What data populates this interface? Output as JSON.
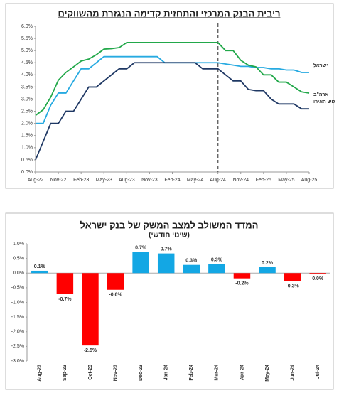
{
  "chart_data": [
    {
      "type": "line",
      "title": "ריבית הבנק המרכזי והתחזית קדימה הנגזרת מהשווקים",
      "categories": [
        "Aug-22",
        null,
        null,
        "Nov-22",
        null,
        null,
        "Feb-23",
        null,
        null,
        "May-23",
        null,
        null,
        "Aug-23",
        null,
        null,
        "Nov-23",
        null,
        null,
        "Feb-24",
        null,
        null,
        "May-24",
        null,
        null,
        "Aug-24",
        null,
        null,
        "Nov-24",
        null,
        null,
        "Feb-25",
        null,
        null,
        "May-25",
        null,
        null,
        "Aug-25"
      ],
      "series": [
        {
          "name": "ישראל",
          "color": "#27aae1",
          "values": [
            2.0,
            2.0,
            2.75,
            3.25,
            3.25,
            3.75,
            4.25,
            4.25,
            4.5,
            4.75,
            4.75,
            4.75,
            4.75,
            4.75,
            4.75,
            4.75,
            4.75,
            4.5,
            4.5,
            4.5,
            4.5,
            4.5,
            4.5,
            4.5,
            4.5,
            4.45,
            4.4,
            4.35,
            4.35,
            4.3,
            4.3,
            4.25,
            4.25,
            4.2,
            4.2,
            4.1,
            4.1
          ]
        },
        {
          "name": "ארה\"ב",
          "color": "#22a84a",
          "values": [
            2.33,
            2.56,
            3.08,
            3.78,
            4.1,
            4.33,
            4.57,
            4.65,
            4.83,
            5.06,
            5.08,
            5.12,
            5.33,
            5.33,
            5.33,
            5.33,
            5.33,
            5.33,
            5.33,
            5.33,
            5.33,
            5.33,
            5.33,
            5.33,
            5.33,
            5.0,
            5.0,
            4.6,
            4.4,
            4.33,
            4.0,
            4.0,
            3.7,
            3.7,
            3.5,
            3.3,
            3.25
          ]
        },
        {
          "name": "גוש האירו",
          "color": "#1f3864",
          "values": [
            0.5,
            1.25,
            2.0,
            2.0,
            2.5,
            2.5,
            3.0,
            3.5,
            3.5,
            3.75,
            4.0,
            4.25,
            4.25,
            4.5,
            4.5,
            4.5,
            4.5,
            4.5,
            4.5,
            4.5,
            4.5,
            4.5,
            4.25,
            4.25,
            4.25,
            4.0,
            3.75,
            3.75,
            3.4,
            3.35,
            3.35,
            3.0,
            2.8,
            2.8,
            2.8,
            2.6,
            2.6
          ]
        }
      ],
      "forecast_start": "Aug-24",
      "ylim": [
        0,
        6
      ],
      "yticks": [
        {
          "value": 0,
          "label": "0.0%"
        },
        {
          "value": 0.5,
          "label": "0.5%"
        },
        {
          "value": 1,
          "label": "1.0%"
        },
        {
          "value": 1.5,
          "label": "1.5%"
        },
        {
          "value": 2,
          "label": "2.0%"
        },
        {
          "value": 2.5,
          "label": "2.5%"
        },
        {
          "value": 3,
          "label": "3.0%"
        },
        {
          "value": 3.5,
          "label": "3.5%"
        },
        {
          "value": 4,
          "label": "4.0%"
        },
        {
          "value": 4.5,
          "label": "4.5%"
        },
        {
          "value": 5,
          "label": "5.0%"
        },
        {
          "value": 5.5,
          "label": "5.5%"
        },
        {
          "value": 6,
          "label": "6.0%"
        }
      ],
      "grid": false
    },
    {
      "type": "bar",
      "title": "המדד המשולב למצב המשק של בנק ישראל",
      "subtitle": "(שינוי חודשי)",
      "categories": [
        "Aug-23",
        "Sep-23",
        "Oct-23",
        "Nov-23",
        "Dec-23",
        "Jan-24",
        "Feb-24",
        "Mar-24",
        "Apr-24",
        "May-24",
        "Jun-24",
        "Jul-24"
      ],
      "values": [
        0.08,
        -0.72,
        -2.47,
        -0.57,
        0.72,
        0.67,
        0.28,
        0.3,
        -0.18,
        0.2,
        -0.28,
        -0.02
      ],
      "value_labels": [
        "0.1%",
        "-0.7%",
        "-2.5%",
        "-0.6%",
        "0.7%",
        "0.7%",
        "0.3%",
        "0.3%",
        "-0.2%",
        "0.2%",
        "-0.3%",
        "0.0%"
      ],
      "positive_color": "#13a7e4",
      "negative_color": "#ff0000",
      "ylim": [
        -3,
        1
      ],
      "yticks": [
        {
          "value": -3,
          "label": "-3.0%"
        },
        {
          "value": -2.5,
          "label": "-2.5%"
        },
        {
          "value": -2,
          "label": "-2.0%"
        },
        {
          "value": -1.5,
          "label": "-1.5%"
        },
        {
          "value": -1,
          "label": "-1.0%"
        },
        {
          "value": -0.5,
          "label": "-0.5%"
        },
        {
          "value": 0,
          "label": "0.0%"
        },
        {
          "value": 0.5,
          "label": "0.5%"
        },
        {
          "value": 1,
          "label": "1.0%"
        }
      ],
      "grid": false
    }
  ]
}
